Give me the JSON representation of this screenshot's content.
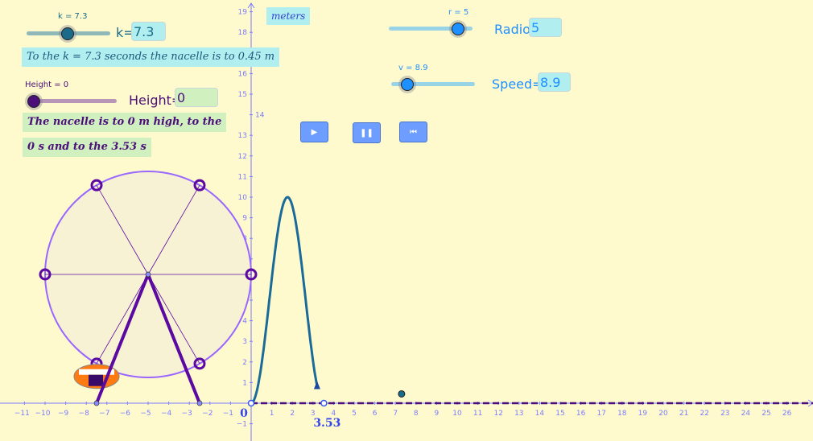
{
  "sliders": {
    "k": {
      "caption": "k = 7.3",
      "value": 7.3,
      "position_fraction": 0.49,
      "input_label": "k=",
      "input_value": "7.3",
      "color": "#1a6a8a"
    },
    "height": {
      "caption": "Height = 0",
      "value": 0,
      "position_fraction": 0.06,
      "input_label": "Height=",
      "input_value": "0",
      "color": "#4b0f7a"
    },
    "r": {
      "caption": "r = 5",
      "value": 5,
      "position_fraction": 0.83,
      "input_label": "Radio",
      "input_value": "5",
      "color": "#1e90ff"
    },
    "v": {
      "caption": "v = 8.9",
      "value": 8.9,
      "position_fraction": 0.19,
      "input_label": "Speed=",
      "input_value": "8.9",
      "color": "#1e90ff"
    }
  },
  "texts": {
    "k_sentence": "To the k = 7.3 seconds the nacelle is to  0.45 m",
    "height_sentence_1": "The nacelle is to 0 m high, to the",
    "height_sentence_2": "0 s  and  to  the  3.53 s",
    "units": "meters"
  },
  "buttons": {
    "play": "play-icon",
    "pause": "pause-icon",
    "rewind": "rewind-icon"
  },
  "graph": {
    "x_range": [
      -11,
      26
    ],
    "y_range": [
      -1,
      19
    ],
    "axis_color": "#7b7bff",
    "curve_color": "#1a6a9a",
    "curve_t_end": 3.2,
    "curve_peak": 10,
    "zero_labels": [
      "0",
      "3.53"
    ],
    "zero_points": [
      0,
      3.53
    ],
    "current_point": [
      7.3,
      0.45
    ],
    "wheel": {
      "center": [
        -5,
        6.25
      ],
      "radius": 5,
      "legs_base_x": [
        -7.5,
        -2.5
      ],
      "fill": "#f8f2d4",
      "rim_color": "#9966ff",
      "seat_color": "#5a0aa0"
    }
  }
}
